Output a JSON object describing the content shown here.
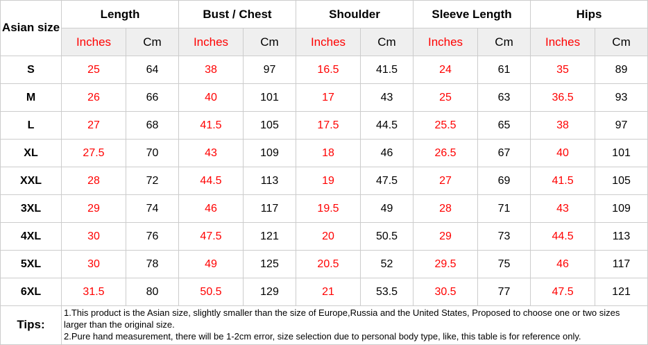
{
  "table": {
    "corner_header": "Asian size",
    "groups": [
      {
        "slug": "length",
        "label": "Length"
      },
      {
        "slug": "bust-chest",
        "label": "Bust / Chest"
      },
      {
        "slug": "shoulder",
        "label": "Shoulder"
      },
      {
        "slug": "sleeve-length",
        "label": "Sleeve Length"
      },
      {
        "slug": "hips",
        "label": "Hips"
      }
    ],
    "unit_headers": {
      "inches": "Inches",
      "cm": "Cm"
    },
    "rows": [
      {
        "size": "S",
        "values": [
          25,
          64,
          38,
          97,
          16.5,
          41.5,
          24,
          61,
          35,
          89
        ]
      },
      {
        "size": "M",
        "values": [
          26,
          66,
          40,
          101,
          17,
          43,
          25,
          63,
          36.5,
          93
        ]
      },
      {
        "size": "L",
        "values": [
          27,
          68,
          41.5,
          105,
          17.5,
          44.5,
          25.5,
          65,
          38,
          97
        ]
      },
      {
        "size": "XL",
        "values": [
          27.5,
          70,
          43,
          109,
          18,
          46,
          26.5,
          67,
          40,
          101
        ]
      },
      {
        "size": "XXL",
        "values": [
          28,
          72,
          44.5,
          113,
          19,
          47.5,
          27,
          69,
          41.5,
          105
        ]
      },
      {
        "size": "3XL",
        "values": [
          29,
          74,
          46,
          117,
          19.5,
          49,
          28,
          71,
          43,
          109
        ]
      },
      {
        "size": "4XL",
        "values": [
          30,
          76,
          47.5,
          121,
          20,
          50.5,
          29,
          73,
          44.5,
          113
        ]
      },
      {
        "size": "5XL",
        "values": [
          30,
          78,
          49,
          125,
          20.5,
          52,
          29.5,
          75,
          46,
          117
        ]
      },
      {
        "size": "6XL",
        "values": [
          31.5,
          80,
          50.5,
          129,
          21,
          53.5,
          30.5,
          77,
          47.5,
          121
        ]
      }
    ],
    "tips": {
      "label": "Tips:",
      "lines": [
        "1.This product is the Asian size, slightly smaller than the size of Europe,Russia and the United States, Proposed to choose one or two sizes larger than the original size.",
        "2.Pure hand measurement, there will be 1-2cm error, size selection due to personal body type, like, this table is for reference only."
      ]
    }
  },
  "colors": {
    "inches_text": "#ff0000",
    "cm_text": "#000000",
    "border": "#cccccc",
    "subheader_bg": "#efefef",
    "background": "#ffffff"
  }
}
